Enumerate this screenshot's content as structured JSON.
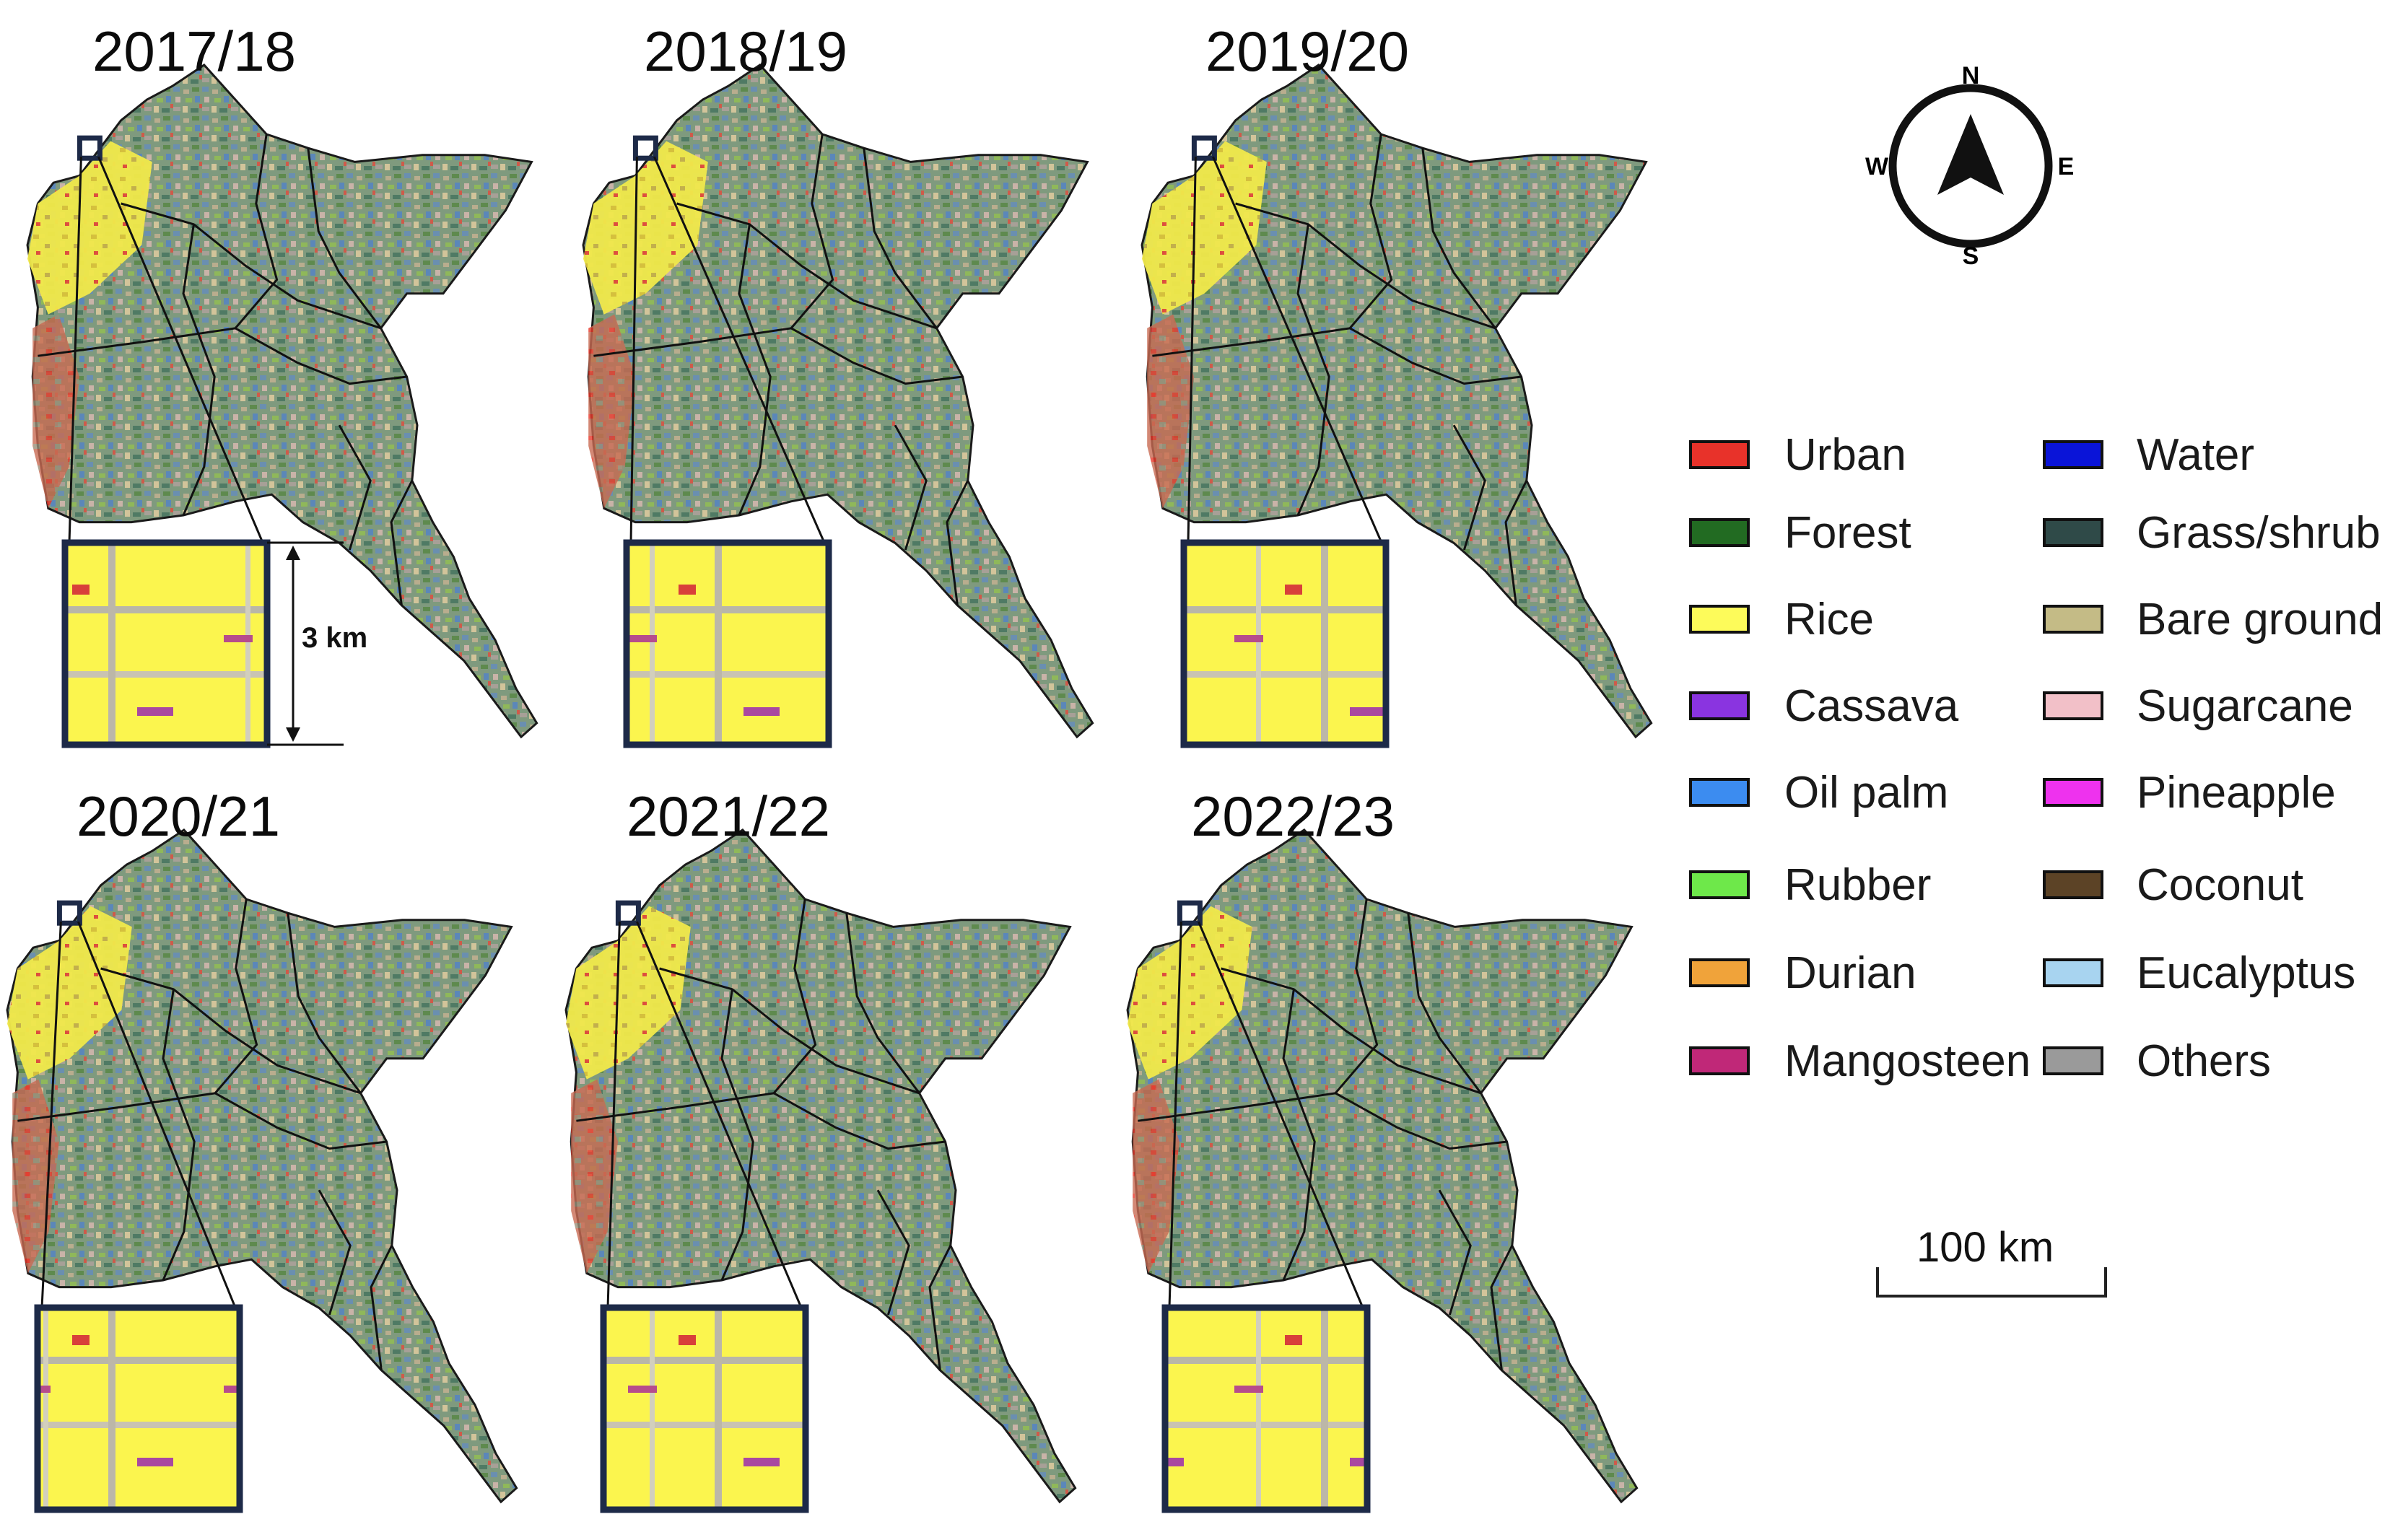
{
  "panels": [
    {
      "year": "2017/18",
      "has_scale_annotation": true
    },
    {
      "year": "2018/19",
      "has_scale_annotation": false
    },
    {
      "year": "2019/20",
      "has_scale_annotation": false
    },
    {
      "year": "2020/21",
      "has_scale_annotation": false
    },
    {
      "year": "2021/22",
      "has_scale_annotation": false
    },
    {
      "year": "2022/23",
      "has_scale_annotation": false
    }
  ],
  "inset_scale_label": "3 km",
  "legend": [
    {
      "label": "Urban",
      "color": "#e8322a"
    },
    {
      "label": "Water",
      "color": "#0a14d8"
    },
    {
      "label": "Forest",
      "color": "#226b22"
    },
    {
      "label": "Grass/shrub",
      "color": "#2f4a48"
    },
    {
      "label": "Rice",
      "color": "#fdfb5a"
    },
    {
      "label": "Bare ground",
      "color": "#c4bb86"
    },
    {
      "label": "Cassava",
      "color": "#8a34e0"
    },
    {
      "label": "Sugarcane",
      "color": "#f2c0c8"
    },
    {
      "label": "Oil palm",
      "color": "#3c8cf0"
    },
    {
      "label": "Pineapple",
      "color": "#ee32ee"
    },
    {
      "label": "Rubber",
      "color": "#6ee84a"
    },
    {
      "label": "Coconut",
      "color": "#5c4326"
    },
    {
      "label": "Durian",
      "color": "#f0a33a"
    },
    {
      "label": "Eucalyptus",
      "color": "#a8d4f0"
    },
    {
      "label": "Mangosteen",
      "color": "#c02878"
    },
    {
      "label": "Others",
      "color": "#9a9a9a"
    }
  ],
  "compass": {
    "n": "N",
    "s": "S",
    "e": "E",
    "w": "W"
  },
  "scale_bar_label": "100 km"
}
